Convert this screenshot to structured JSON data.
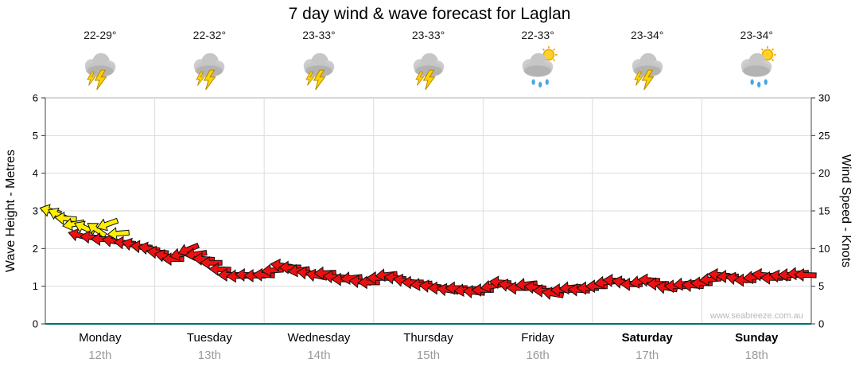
{
  "title": "7 day wind & wave forecast for Laglan",
  "watermark": "www.seabreeze.com.au",
  "left_axis": {
    "label": "Wave Height - Metres",
    "min": 0,
    "max": 6,
    "ticks": [
      0,
      1,
      2,
      3,
      4,
      5,
      6
    ]
  },
  "right_axis": {
    "label": "Wind Speed - Knots",
    "min": 0,
    "max": 30,
    "ticks": [
      0,
      5,
      10,
      15,
      20,
      25,
      30
    ]
  },
  "colors": {
    "yellow_arrow": "#ffee00",
    "red_arrow": "#ee1010",
    "arrow_outline": "#101010",
    "axis_line": "#007272",
    "gridline": "#dcdcdc",
    "plot_border": "#b0b0b0",
    "cloud_gray": "#c6c6c6",
    "bolt_yellow": "#ffd400",
    "rain_blue": "#4aa6e0",
    "sun_yellow": "#ffd428"
  },
  "days": [
    {
      "name": "Monday",
      "date": "12th",
      "temp": "22-29°",
      "icon": "thunderstorm",
      "weekend": false
    },
    {
      "name": "Tuesday",
      "date": "13th",
      "temp": "22-32°",
      "icon": "thunderstorm",
      "weekend": false
    },
    {
      "name": "Wednesday",
      "date": "14th",
      "temp": "23-33°",
      "icon": "thunderstorm",
      "weekend": false
    },
    {
      "name": "Thursday",
      "date": "15th",
      "temp": "23-33°",
      "icon": "thunderstorm",
      "weekend": false
    },
    {
      "name": "Friday",
      "date": "16th",
      "temp": "22-33°",
      "icon": "sun-showers",
      "weekend": false
    },
    {
      "name": "Saturday",
      "date": "17th",
      "temp": "23-34°",
      "icon": "thunderstorm",
      "weekend": true
    },
    {
      "name": "Sunday",
      "date": "18th",
      "temp": "23-34°",
      "icon": "sun-showers",
      "weekend": true
    }
  ],
  "chart_data": {
    "type": "scatter",
    "subtype": "wind-arrows",
    "x_unit": "days (0 = start of Monday, 7 = end of Sunday)",
    "value_unit": "wave height metres (left axis); wind speed knots = value * 5 (right axis)",
    "legend": {
      "y": "yellow arrow (lighter/earlier wind)",
      "r": "red arrow"
    },
    "point_format": [
      "x_days",
      "wave_height_m",
      "arrow_rotation_deg",
      "color_key"
    ],
    "points": [
      [
        0.05,
        3.0,
        195,
        "y"
      ],
      [
        0.12,
        2.9,
        205,
        "y"
      ],
      [
        0.19,
        2.8,
        185,
        "y"
      ],
      [
        0.26,
        2.65,
        170,
        "y"
      ],
      [
        0.31,
        2.35,
        195,
        "r"
      ],
      [
        0.36,
        2.55,
        205,
        "y"
      ],
      [
        0.42,
        2.3,
        185,
        "r"
      ],
      [
        0.47,
        2.5,
        215,
        "y"
      ],
      [
        0.52,
        2.25,
        180,
        "r"
      ],
      [
        0.57,
        2.65,
        160,
        "y"
      ],
      [
        0.62,
        2.2,
        190,
        "r"
      ],
      [
        0.67,
        2.4,
        175,
        "y"
      ],
      [
        0.73,
        2.15,
        185,
        "r"
      ],
      [
        0.8,
        2.1,
        195,
        "r"
      ],
      [
        0.88,
        2.05,
        185,
        "r"
      ],
      [
        0.95,
        2.0,
        190,
        "r"
      ],
      [
        1.03,
        1.9,
        185,
        "r"
      ],
      [
        1.1,
        1.8,
        192,
        "r"
      ],
      [
        1.17,
        1.72,
        180,
        "r"
      ],
      [
        1.24,
        1.85,
        168,
        "r"
      ],
      [
        1.31,
        1.98,
        158,
        "r"
      ],
      [
        1.38,
        1.85,
        172,
        "r"
      ],
      [
        1.45,
        1.72,
        184,
        "r"
      ],
      [
        1.52,
        1.62,
        180,
        "r"
      ],
      [
        1.6,
        1.45,
        182,
        "r"
      ],
      [
        1.68,
        1.3,
        180,
        "r"
      ],
      [
        1.76,
        1.27,
        178,
        "r"
      ],
      [
        1.84,
        1.3,
        182,
        "r"
      ],
      [
        1.92,
        1.28,
        180,
        "r"
      ],
      [
        2.0,
        1.3,
        183,
        "r"
      ],
      [
        2.08,
        1.42,
        176,
        "r"
      ],
      [
        2.16,
        1.55,
        188,
        "r"
      ],
      [
        2.24,
        1.5,
        180,
        "r"
      ],
      [
        2.32,
        1.42,
        172,
        "r"
      ],
      [
        2.4,
        1.35,
        186,
        "r"
      ],
      [
        2.48,
        1.28,
        192,
        "r"
      ],
      [
        2.56,
        1.35,
        178,
        "r"
      ],
      [
        2.64,
        1.25,
        184,
        "r"
      ],
      [
        2.72,
        1.18,
        180,
        "r"
      ],
      [
        2.8,
        1.22,
        174,
        "r"
      ],
      [
        2.88,
        1.12,
        186,
        "r"
      ],
      [
        2.96,
        1.1,
        180,
        "r"
      ],
      [
        3.04,
        1.22,
        180,
        "r"
      ],
      [
        3.12,
        1.3,
        174,
        "r"
      ],
      [
        3.2,
        1.22,
        186,
        "r"
      ],
      [
        3.28,
        1.15,
        190,
        "r"
      ],
      [
        3.36,
        1.1,
        180,
        "r"
      ],
      [
        3.44,
        1.05,
        175,
        "r"
      ],
      [
        3.52,
        1.0,
        185,
        "r"
      ],
      [
        3.6,
        0.95,
        180,
        "r"
      ],
      [
        3.68,
        0.9,
        190,
        "r"
      ],
      [
        3.76,
        0.95,
        180,
        "r"
      ],
      [
        3.84,
        0.9,
        174,
        "r"
      ],
      [
        3.92,
        0.85,
        186,
        "r"
      ],
      [
        4.0,
        0.9,
        180,
        "r"
      ],
      [
        4.08,
        1.0,
        170,
        "r"
      ],
      [
        4.16,
        1.1,
        184,
        "r"
      ],
      [
        4.24,
        1.02,
        190,
        "r"
      ],
      [
        4.32,
        0.95,
        180,
        "r"
      ],
      [
        4.4,
        1.05,
        174,
        "r"
      ],
      [
        4.48,
        0.97,
        186,
        "r"
      ],
      [
        4.56,
        0.88,
        180,
        "r"
      ],
      [
        4.64,
        0.8,
        190,
        "r"
      ],
      [
        4.72,
        0.9,
        180,
        "r"
      ],
      [
        4.8,
        0.96,
        174,
        "r"
      ],
      [
        4.88,
        0.9,
        184,
        "r"
      ],
      [
        4.96,
        0.95,
        180,
        "r"
      ],
      [
        5.04,
        1.0,
        180,
        "r"
      ],
      [
        5.12,
        1.1,
        174,
        "r"
      ],
      [
        5.2,
        1.15,
        184,
        "r"
      ],
      [
        5.28,
        1.1,
        190,
        "r"
      ],
      [
        5.36,
        1.05,
        180,
        "r"
      ],
      [
        5.44,
        1.12,
        170,
        "r"
      ],
      [
        5.52,
        1.16,
        184,
        "r"
      ],
      [
        5.6,
        1.06,
        180,
        "r"
      ],
      [
        5.68,
        0.96,
        190,
        "r"
      ],
      [
        5.76,
        1.0,
        180,
        "r"
      ],
      [
        5.84,
        1.06,
        174,
        "r"
      ],
      [
        5.92,
        1.02,
        184,
        "r"
      ],
      [
        6.0,
        1.08,
        180,
        "r"
      ],
      [
        6.08,
        1.18,
        175,
        "r"
      ],
      [
        6.16,
        1.3,
        185,
        "r"
      ],
      [
        6.24,
        1.26,
        180,
        "r"
      ],
      [
        6.32,
        1.2,
        190,
        "r"
      ],
      [
        6.4,
        1.16,
        180,
        "r"
      ],
      [
        6.48,
        1.24,
        174,
        "r"
      ],
      [
        6.56,
        1.3,
        186,
        "r"
      ],
      [
        6.64,
        1.22,
        180,
        "r"
      ],
      [
        6.72,
        1.26,
        190,
        "r"
      ],
      [
        6.8,
        1.3,
        180,
        "r"
      ],
      [
        6.88,
        1.34,
        176,
        "r"
      ],
      [
        6.95,
        1.3,
        182,
        "r"
      ]
    ]
  }
}
